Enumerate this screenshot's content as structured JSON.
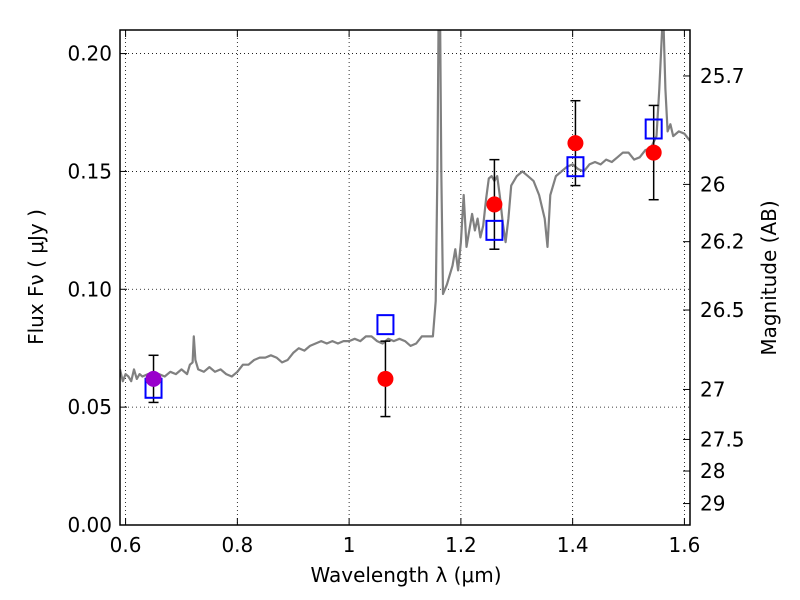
{
  "chart_data": {
    "type": "scatter",
    "xlabel": "Wavelength  λ (μm)",
    "ylabel": "Flux  Fν  ( μJy )",
    "ylabel_right": "Magnitude (AB)",
    "xlim": [
      0.59,
      1.61
    ],
    "ylim": [
      0.0,
      0.21
    ],
    "grid": true,
    "x_ticks": [
      0.6,
      0.8,
      1.0,
      1.2,
      1.4,
      1.6
    ],
    "x_tick_labels": [
      "0.6",
      "0.8",
      "1",
      "1.2",
      "1.4",
      "1.6"
    ],
    "y_ticks": [
      0.0,
      0.05,
      0.1,
      0.15,
      0.2
    ],
    "y_tick_labels": [
      "0.00",
      "0.05",
      "0.10",
      "0.15",
      "0.20"
    ],
    "right_ticks": [
      {
        "label": "25.7",
        "flux": 0.1905
      },
      {
        "label": "26",
        "flux": 0.1445
      },
      {
        "label": "26.2",
        "flux": 0.1202
      },
      {
        "label": "26.5",
        "flux": 0.0912
      },
      {
        "label": "27",
        "flux": 0.0575
      },
      {
        "label": "27.5",
        "flux": 0.0363
      },
      {
        "label": "28",
        "flux": 0.0229
      },
      {
        "label": "29",
        "flux": 0.0091
      }
    ],
    "colors": {
      "model": "#808080",
      "observed": "#ff0000",
      "synthetic": "#0000ff",
      "overlap": "#9900cc",
      "errorbar": "#000000"
    },
    "series": [
      {
        "kind": "line",
        "points": [
          [
            0.59,
            0.066
          ],
          [
            0.595,
            0.061
          ],
          [
            0.6,
            0.064
          ],
          [
            0.605,
            0.063
          ],
          [
            0.61,
            0.061
          ],
          [
            0.615,
            0.066
          ],
          [
            0.62,
            0.062
          ],
          [
            0.625,
            0.064
          ],
          [
            0.63,
            0.063
          ],
          [
            0.64,
            0.064
          ],
          [
            0.65,
            0.062
          ],
          [
            0.66,
            0.064
          ],
          [
            0.67,
            0.063
          ],
          [
            0.68,
            0.065
          ],
          [
            0.69,
            0.064
          ],
          [
            0.7,
            0.066
          ],
          [
            0.71,
            0.064
          ],
          [
            0.715,
            0.068
          ],
          [
            0.72,
            0.069
          ],
          [
            0.722,
            0.08
          ],
          [
            0.725,
            0.07
          ],
          [
            0.73,
            0.066
          ],
          [
            0.74,
            0.065
          ],
          [
            0.75,
            0.067
          ],
          [
            0.76,
            0.065
          ],
          [
            0.77,
            0.066
          ],
          [
            0.78,
            0.064
          ],
          [
            0.79,
            0.063
          ],
          [
            0.8,
            0.065
          ],
          [
            0.81,
            0.068
          ],
          [
            0.82,
            0.068
          ],
          [
            0.83,
            0.07
          ],
          [
            0.84,
            0.071
          ],
          [
            0.85,
            0.071
          ],
          [
            0.86,
            0.072
          ],
          [
            0.87,
            0.071
          ],
          [
            0.88,
            0.069
          ],
          [
            0.89,
            0.07
          ],
          [
            0.9,
            0.073
          ],
          [
            0.91,
            0.075
          ],
          [
            0.92,
            0.074
          ],
          [
            0.93,
            0.076
          ],
          [
            0.94,
            0.077
          ],
          [
            0.95,
            0.078
          ],
          [
            0.96,
            0.077
          ],
          [
            0.97,
            0.078
          ],
          [
            0.98,
            0.077
          ],
          [
            0.99,
            0.078
          ],
          [
            1.0,
            0.078
          ],
          [
            1.01,
            0.079
          ],
          [
            1.02,
            0.078
          ],
          [
            1.03,
            0.08
          ],
          [
            1.04,
            0.08
          ],
          [
            1.05,
            0.078
          ],
          [
            1.06,
            0.077
          ],
          [
            1.07,
            0.079
          ],
          [
            1.08,
            0.078
          ],
          [
            1.09,
            0.079
          ],
          [
            1.1,
            0.078
          ],
          [
            1.11,
            0.076
          ],
          [
            1.12,
            0.077
          ],
          [
            1.13,
            0.08
          ],
          [
            1.14,
            0.08
          ],
          [
            1.15,
            0.08
          ],
          [
            1.155,
            0.095
          ],
          [
            1.158,
            0.15
          ],
          [
            1.16,
            0.21
          ],
          [
            1.163,
            0.21
          ],
          [
            1.165,
            0.15
          ],
          [
            1.168,
            0.098
          ],
          [
            1.175,
            0.102
          ],
          [
            1.185,
            0.11
          ],
          [
            1.19,
            0.117
          ],
          [
            1.195,
            0.108
          ],
          [
            1.2,
            0.12
          ],
          [
            1.205,
            0.14
          ],
          [
            1.21,
            0.118
          ],
          [
            1.22,
            0.132
          ],
          [
            1.225,
            0.125
          ],
          [
            1.23,
            0.13
          ],
          [
            1.235,
            0.122
          ],
          [
            1.24,
            0.127
          ],
          [
            1.245,
            0.138
          ],
          [
            1.25,
            0.147
          ],
          [
            1.255,
            0.148
          ],
          [
            1.26,
            0.146
          ],
          [
            1.265,
            0.148
          ],
          [
            1.27,
            0.139
          ],
          [
            1.275,
            0.128
          ],
          [
            1.28,
            0.12
          ],
          [
            1.285,
            0.13
          ],
          [
            1.29,
            0.144
          ],
          [
            1.3,
            0.148
          ],
          [
            1.31,
            0.15
          ],
          [
            1.32,
            0.148
          ],
          [
            1.33,
            0.146
          ],
          [
            1.34,
            0.14
          ],
          [
            1.35,
            0.13
          ],
          [
            1.355,
            0.118
          ],
          [
            1.36,
            0.14
          ],
          [
            1.37,
            0.148
          ],
          [
            1.38,
            0.15
          ],
          [
            1.39,
            0.152
          ],
          [
            1.4,
            0.153
          ],
          [
            1.41,
            0.151
          ],
          [
            1.42,
            0.15
          ],
          [
            1.43,
            0.153
          ],
          [
            1.44,
            0.154
          ],
          [
            1.45,
            0.153
          ],
          [
            1.46,
            0.155
          ],
          [
            1.47,
            0.154
          ],
          [
            1.48,
            0.156
          ],
          [
            1.49,
            0.158
          ],
          [
            1.5,
            0.158
          ],
          [
            1.51,
            0.155
          ],
          [
            1.52,
            0.156
          ],
          [
            1.53,
            0.159
          ],
          [
            1.54,
            0.16
          ],
          [
            1.55,
            0.165
          ],
          [
            1.555,
            0.185
          ],
          [
            1.56,
            0.21
          ],
          [
            1.563,
            0.21
          ],
          [
            1.566,
            0.185
          ],
          [
            1.57,
            0.167
          ],
          [
            1.575,
            0.17
          ],
          [
            1.58,
            0.165
          ],
          [
            1.59,
            0.167
          ],
          [
            1.6,
            0.166
          ],
          [
            1.61,
            0.163
          ]
        ]
      },
      {
        "kind": "markers-square",
        "x": [
          0.65,
          1.065,
          1.26,
          1.405,
          1.545
        ],
        "y": [
          0.058,
          0.085,
          0.125,
          0.152,
          0.168
        ]
      },
      {
        "kind": "markers-circle",
        "x": [
          0.65,
          1.065,
          1.26,
          1.405,
          1.545
        ],
        "y": [
          0.062,
          0.062,
          0.136,
          0.162,
          0.158
        ],
        "err": [
          0.01,
          0.016,
          0.019,
          0.018,
          0.02
        ]
      }
    ]
  }
}
